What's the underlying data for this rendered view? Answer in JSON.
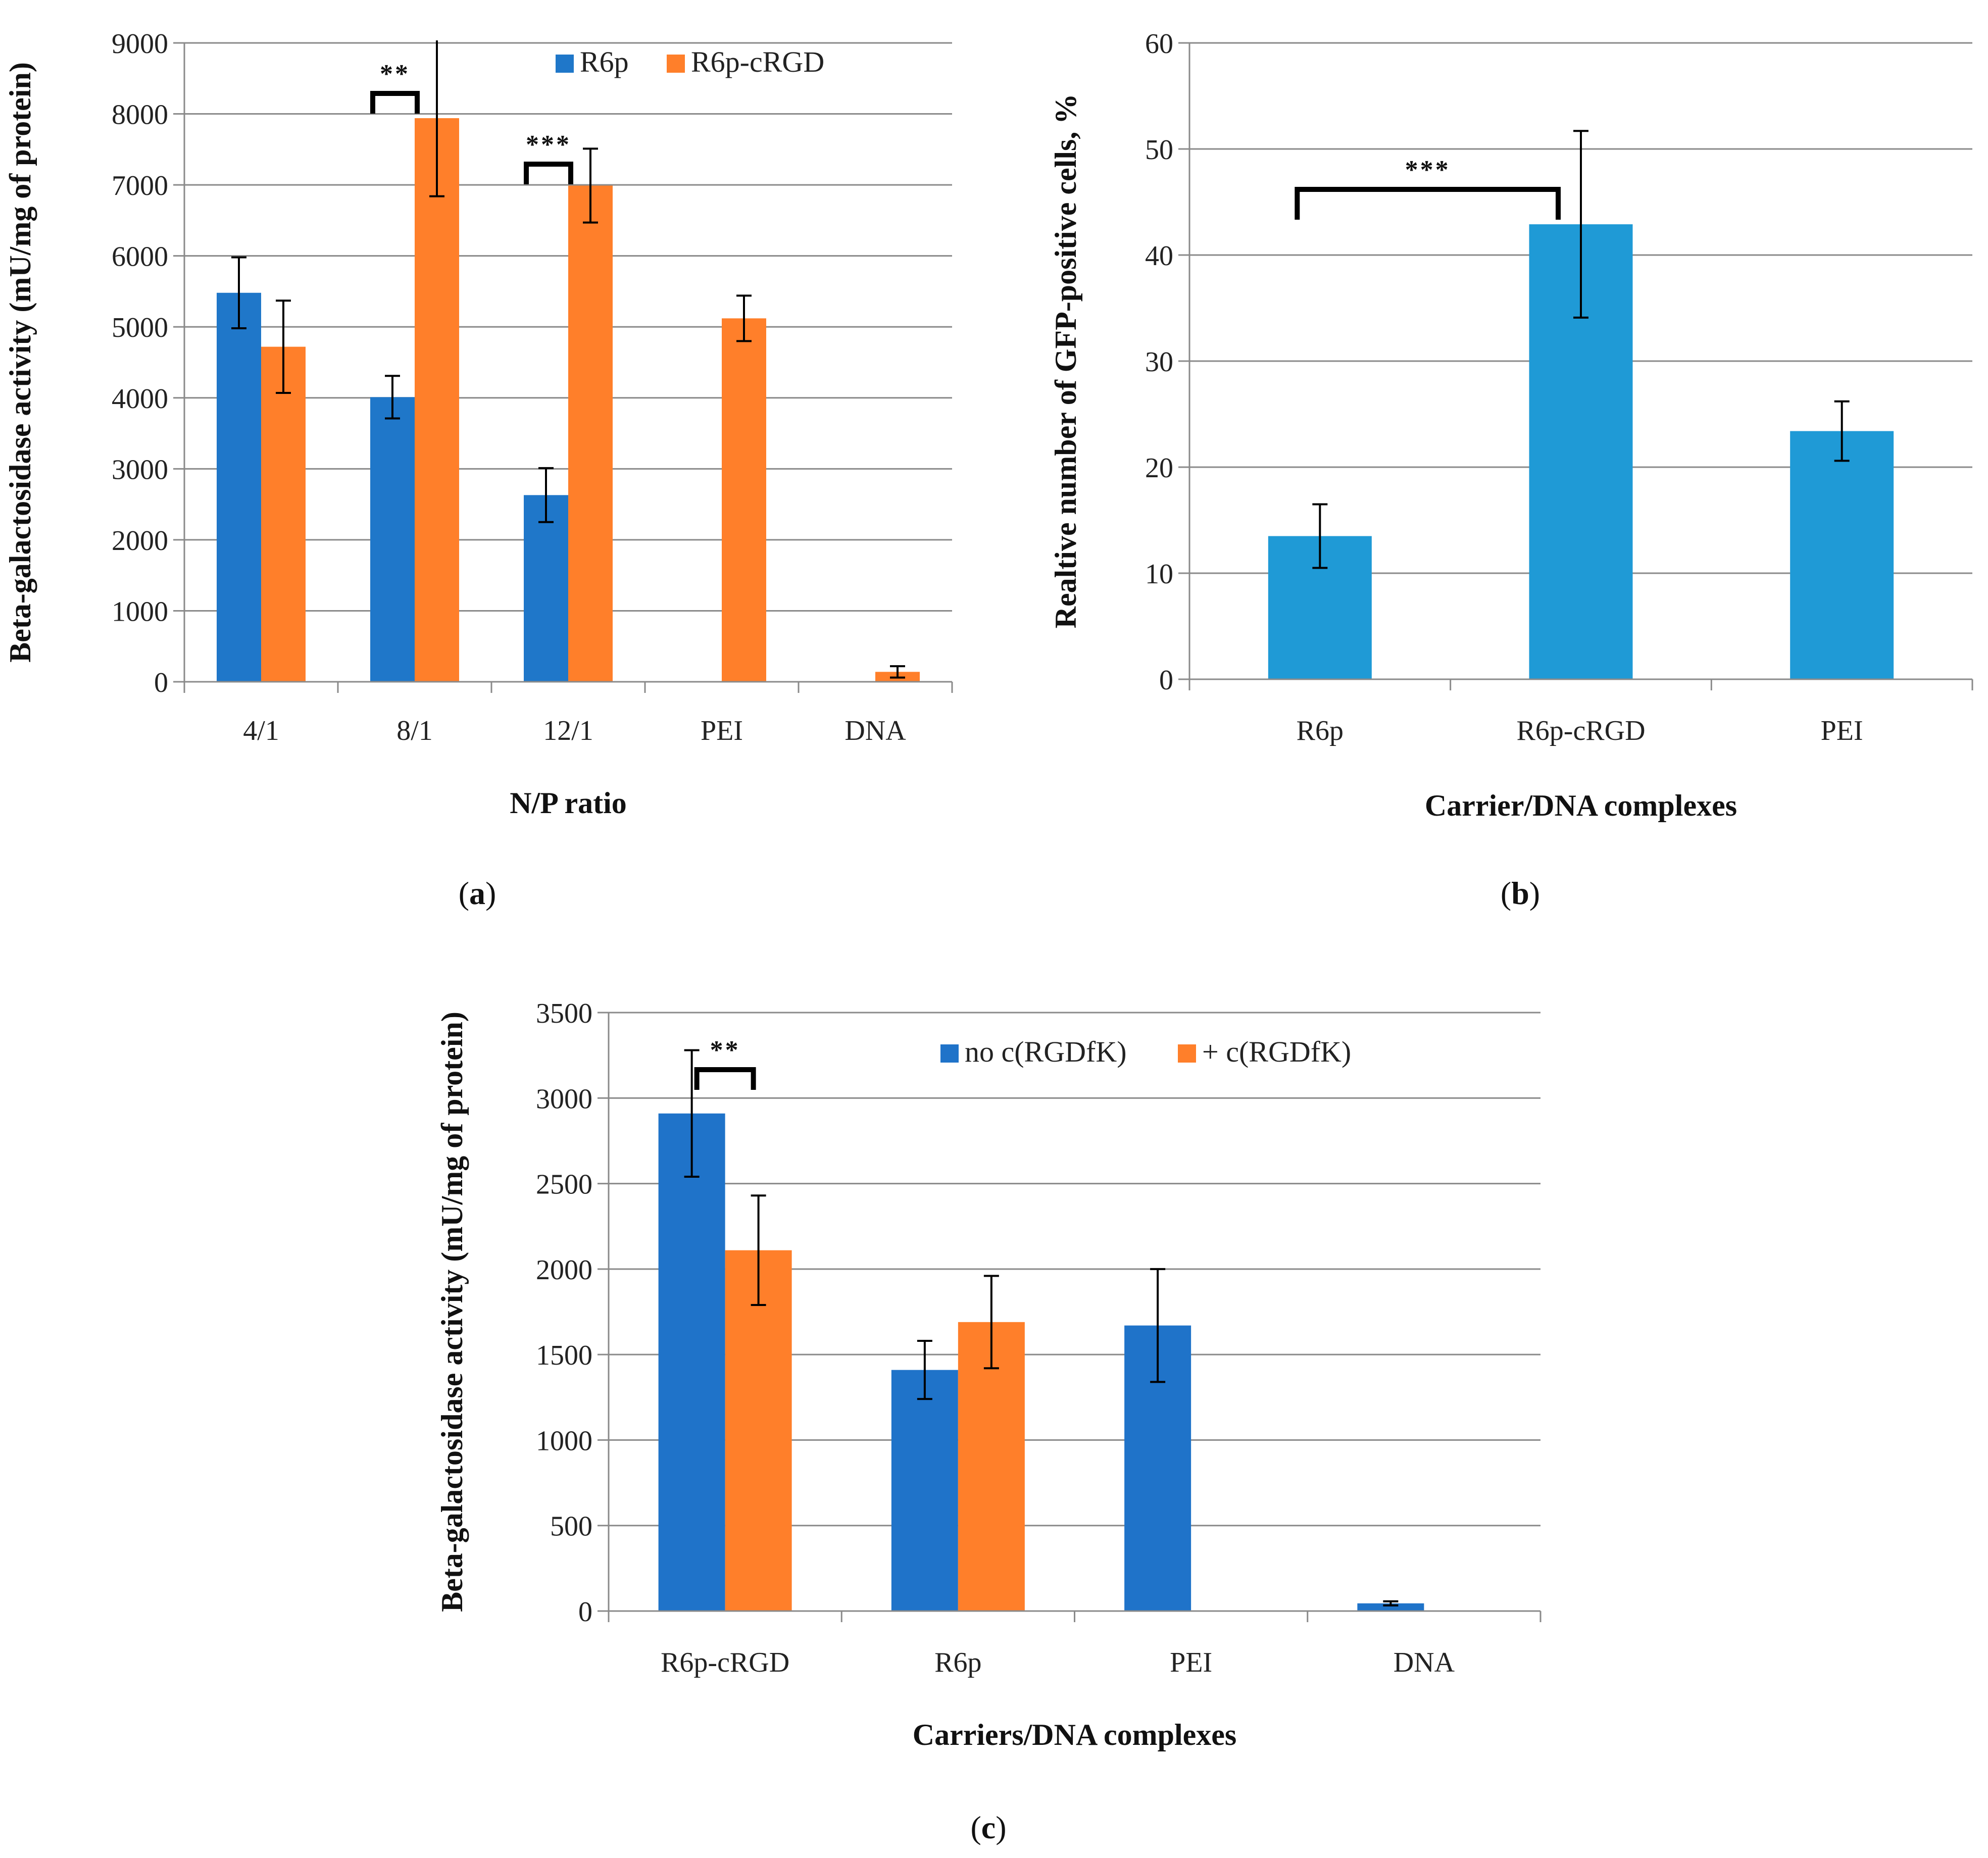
{
  "panels": {
    "a": {
      "label_open": "(",
      "label_letter": "a",
      "label_close": ")"
    },
    "b": {
      "label_open": "(",
      "label_letter": "b",
      "label_close": ")"
    },
    "c": {
      "label_open": "(",
      "label_letter": "c",
      "label_close": ")"
    }
  },
  "chart_data": [
    {
      "id": "a",
      "type": "bar",
      "xlabel": "N/P ratio",
      "ylabel": "Beta-galactosidase activity (mU/mg of protein)",
      "ylim": [
        0,
        9000
      ],
      "yticks": [
        0,
        1000,
        2000,
        3000,
        4000,
        5000,
        6000,
        7000,
        8000,
        9000
      ],
      "grid": true,
      "legend": "top-center",
      "categories": [
        "4/1",
        "8/1",
        "12/1",
        "PEI",
        "DNA"
      ],
      "series": [
        {
          "name": "R6p",
          "color": "#1F77C9",
          "values": [
            5480,
            4010,
            2630,
            null,
            null
          ],
          "errors": [
            500,
            300,
            380,
            null,
            null
          ]
        },
        {
          "name": "R6p-cRGD",
          "color": "#FF7F2A",
          "values": [
            4720,
            7940,
            6990,
            5120,
            140
          ],
          "errors": [
            650,
            1100,
            520,
            320,
            80
          ]
        }
      ],
      "significance": [
        {
          "category": "8/1",
          "label": "**"
        },
        {
          "category": "12/1",
          "label": "***"
        }
      ]
    },
    {
      "id": "b",
      "type": "bar",
      "xlabel": "Carrier/DNA complexes",
      "ylabel": "Realtive number of GFP-positive cells, %",
      "ylim": [
        0,
        60
      ],
      "yticks": [
        0,
        10,
        20,
        30,
        40,
        50,
        60
      ],
      "grid": true,
      "categories": [
        "R6p",
        "R6p-cRGD",
        "PEI"
      ],
      "series": [
        {
          "name": "GFP-positive cells",
          "color": "#1F9AD6",
          "values": [
            13.5,
            42.9,
            23.4
          ],
          "errors": [
            3.0,
            8.8,
            2.8
          ]
        }
      ],
      "significance": [
        {
          "from": "R6p",
          "to": "R6p-cRGD",
          "label": "***"
        }
      ]
    },
    {
      "id": "c",
      "type": "bar",
      "xlabel": "Carriers/DNA complexes",
      "ylabel": "Beta-galactosidase activity (mU/mg of protein)",
      "ylim": [
        0,
        3500
      ],
      "yticks": [
        0,
        500,
        1000,
        1500,
        2000,
        2500,
        3000,
        3500
      ],
      "grid": true,
      "legend": "top-right",
      "categories": [
        "R6p-cRGD",
        "R6p",
        "PEI",
        "DNA"
      ],
      "series": [
        {
          "name": "no c(RGDfK)",
          "color": "#1F73C9",
          "values": [
            2910,
            1410,
            1670,
            45
          ],
          "errors": [
            370,
            170,
            330,
            12
          ]
        },
        {
          "name": "+ c(RGDfK)",
          "color": "#FF7F2A",
          "values": [
            2110,
            1690,
            null,
            null
          ],
          "errors": [
            320,
            270,
            null,
            null
          ]
        }
      ],
      "significance": [
        {
          "category": "R6p-cRGD",
          "label": "**"
        }
      ]
    }
  ]
}
